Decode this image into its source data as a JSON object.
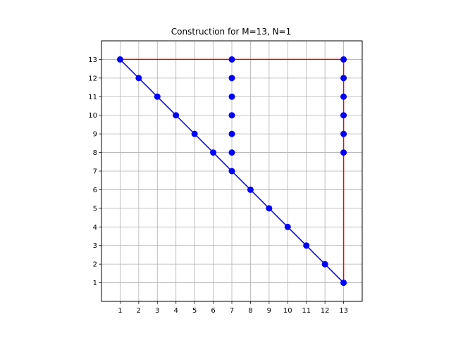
{
  "chart_data": {
    "type": "line",
    "title": "Construction for M=13, N=1",
    "xlabel": "",
    "ylabel": "",
    "xlim": [
      0,
      14
    ],
    "ylim": [
      0,
      14
    ],
    "x_ticks": [
      1,
      2,
      3,
      4,
      5,
      6,
      7,
      8,
      9,
      10,
      11,
      12,
      13
    ],
    "y_ticks": [
      1,
      2,
      3,
      4,
      5,
      6,
      7,
      8,
      9,
      10,
      11,
      12,
      13
    ],
    "grid": true,
    "legend": "none",
    "lines": [
      {
        "color": "#ff0000",
        "x": [
          1,
          13,
          13
        ],
        "y": [
          13,
          13,
          1
        ]
      },
      {
        "color": "#0000ff",
        "x": [
          1,
          2,
          3,
          4,
          5,
          6,
          7,
          8,
          9,
          10,
          11,
          12,
          13
        ],
        "y": [
          13,
          12,
          11,
          10,
          9,
          8,
          7,
          6,
          5,
          4,
          3,
          2,
          1
        ]
      }
    ],
    "points": {
      "color": "#0000ff",
      "x": [
        1,
        2,
        3,
        4,
        5,
        6,
        7,
        8,
        9,
        10,
        11,
        12,
        13,
        7,
        7,
        7,
        7,
        7,
        7,
        13,
        13,
        13,
        13,
        13,
        13
      ],
      "y": [
        13,
        12,
        11,
        10,
        9,
        8,
        7,
        6,
        5,
        4,
        3,
        2,
        1,
        13,
        12,
        11,
        10,
        9,
        8,
        13,
        12,
        11,
        10,
        9,
        8
      ]
    }
  }
}
